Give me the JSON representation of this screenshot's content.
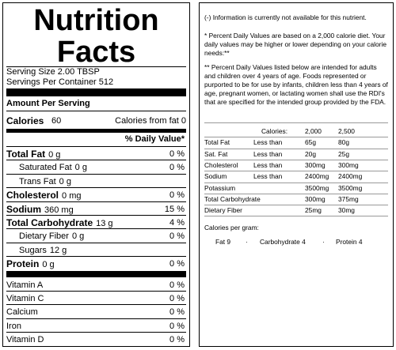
{
  "label": {
    "title_lines": [
      "Nutrition",
      "Facts"
    ],
    "serving_size": "Serving Size 2.00 TBSP",
    "servings_per_container": "Servings Per Container 512",
    "amount_per_serving": "Amount Per Serving",
    "calories": {
      "label": "Calories",
      "value": "60",
      "from_fat": "Calories from fat 0"
    },
    "daily_value_header": "% Daily Value*",
    "nutrients": [
      {
        "name": "Total Fat",
        "amount": "0 g",
        "dv": "0 %",
        "bold": true
      },
      {
        "name": "Saturated Fat",
        "amount": "0 g",
        "dv": "0 %",
        "bold": false
      },
      {
        "name": "Trans Fat",
        "amount": "0 g",
        "bold": false
      },
      {
        "name": "Cholesterol",
        "amount": "0 mg",
        "dv": "0 %",
        "bold": true
      },
      {
        "name": "Sodium",
        "amount": "360 mg",
        "dv": "15 %",
        "bold": true
      },
      {
        "name": "Total Carbohydrate",
        "amount": "13 g",
        "dv": "4 %",
        "bold": true
      },
      {
        "name": "Dietary Fiber",
        "amount": "0 g",
        "dv": "0 %",
        "bold": false
      },
      {
        "name": "Sugars",
        "amount": "12 g",
        "bold": false
      },
      {
        "name": "Protein",
        "amount": "0 g",
        "dv": "0 %",
        "bold": true
      }
    ],
    "vitamins": [
      {
        "name": "Vitamin A",
        "dv": "0 %"
      },
      {
        "name": "Vitamin C",
        "dv": "0 %"
      },
      {
        "name": "Calcium",
        "dv": "0 %"
      },
      {
        "name": "Iron",
        "dv": "0 %"
      },
      {
        "name": "Vitamin D",
        "dv": "0 %"
      }
    ]
  },
  "notes": {
    "info": "(-) Information is currently not available for this nutrient.",
    "footnote_1": "* Percent Daily Values are based on a 2,000 calorie diet. Your daily values may be higher or lower depending on your calorie needs:**",
    "footnote_2": "** Percent Daily Values listed below are intended for adults and children over 4 years of age. Foods represented or purported to be for use by infants, children less than 4 years of age, pregnant women, or lactating women shall use the RDI's that are specified for the intended group provided by the FDA.",
    "table": {
      "header": {
        "label": "Calories:",
        "columns": [
          "2,000",
          "2,500"
        ]
      },
      "rows": [
        {
          "nutrient": "Total Fat",
          "limit": "Less than",
          "values": [
            "65g",
            "80g"
          ]
        },
        {
          "nutrient": "Sat. Fat",
          "limit": "Less than",
          "values": [
            "20g",
            "25g"
          ]
        },
        {
          "nutrient": "Cholesterol",
          "limit": "Less than",
          "values": [
            "300mg",
            "300mg"
          ]
        },
        {
          "nutrient": "Sodium",
          "limit": "Less than",
          "values": [
            "2400mg",
            "2400mg"
          ]
        },
        {
          "nutrient": "Potassium",
          "values": [
            "3500mg",
            "3500mg"
          ]
        },
        {
          "nutrient": "Total Carbohydrate",
          "values": [
            "300mg",
            "375mg"
          ]
        },
        {
          "nutrient": "Dietary Fiber",
          "values": [
            "25mg",
            "30mg"
          ]
        }
      ]
    },
    "calories_per_gram": "Calories per gram:",
    "per_gram": [
      "Fat 9",
      "Carbohydrate 4",
      "Protein 4"
    ]
  }
}
